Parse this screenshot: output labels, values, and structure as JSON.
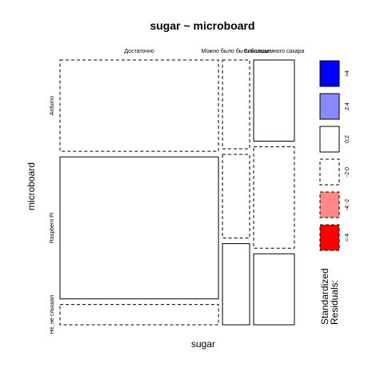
{
  "chart_data": {
    "type": "mosaic",
    "title": "sugar ~ microboard",
    "xlabel": "sugar",
    "ylabel": "microboard",
    "x_categories": [
      "Достаточно",
      "Можно было бы побольше",
      "Слишком много сахара"
    ],
    "y_categories": [
      "Arduino",
      "Raspberri Pi",
      "Не, не слышал"
    ],
    "column_proportions": [
      0.7,
      0.12,
      0.18
    ],
    "cell_proportions": [
      [
        0.36,
        0.56,
        0.08
      ],
      [
        0.35,
        0.33,
        0.32
      ],
      [
        0.32,
        0.4,
        0.28
      ]
    ],
    "cell_residual_class": [
      [
        "-2:0",
        "0:2",
        "-2:0"
      ],
      [
        "-2:0",
        "-2:0",
        "0:2"
      ],
      [
        "0:2",
        "-2:0",
        "0:2"
      ]
    ],
    "legend": {
      "title_line1": "Standardized",
      "title_line2": "Residuals:",
      "entries": [
        {
          "label": ">4",
          "color": "#0000ff",
          "dashed": false
        },
        {
          "label": "2:4",
          "color": "#8888ff",
          "dashed": false
        },
        {
          "label": "0:2",
          "color": "#ffffff",
          "dashed": false
        },
        {
          "label": "-2:0",
          "color": "#ffffff",
          "dashed": true
        },
        {
          "label": "-4:-2",
          "color": "#ff8888",
          "dashed": true
        },
        {
          "label": "<-4",
          "color": "#ff0000",
          "dashed": true
        }
      ]
    }
  }
}
